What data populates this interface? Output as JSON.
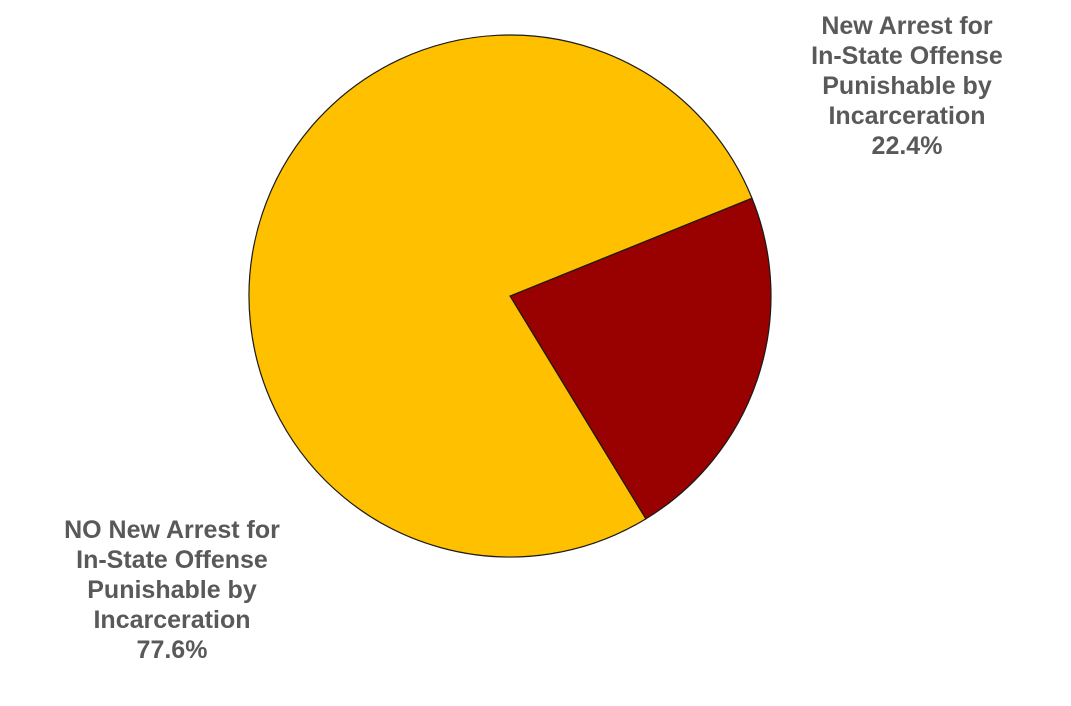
{
  "chart_data": {
    "type": "pie",
    "slices": [
      {
        "label_lines": [
          "New Arrest for",
          "In-State Offense",
          "Punishable by",
          "Incarceration"
        ],
        "value": 22.4,
        "value_label": "22.4%",
        "color": "#990000"
      },
      {
        "label_lines": [
          "NO New Arrest for",
          "In-State Offense",
          "Punishable by",
          "Incarceration"
        ],
        "value": 77.6,
        "value_label": "77.6%",
        "color": "#FFC000"
      }
    ],
    "legend": "none",
    "label_color": "#595959"
  }
}
